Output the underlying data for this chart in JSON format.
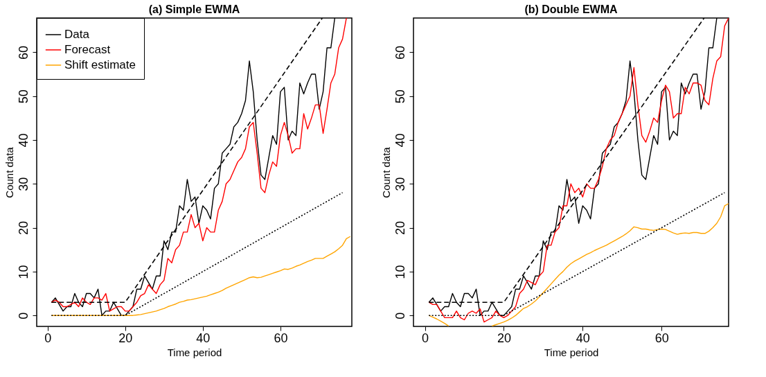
{
  "chart_data": [
    {
      "type": "line",
      "title": "(a) Simple EWMA",
      "xlabel": "Time period",
      "ylabel": "Count data",
      "xlim": [
        -2.8,
        78.4
      ],
      "ylim": [
        -2.5,
        67.8
      ],
      "xticks": [
        0,
        20,
        40,
        60
      ],
      "yticks": [
        0,
        10,
        20,
        30,
        40,
        50,
        60
      ],
      "grid": false,
      "legend": "top left",
      "line_style": "solid",
      "x": [
        1,
        2,
        3,
        4,
        5,
        6,
        7,
        8,
        9,
        10,
        11,
        12,
        13,
        14,
        15,
        16,
        17,
        18,
        19,
        20,
        21,
        22,
        23,
        24,
        25,
        26,
        27,
        28,
        29,
        30,
        31,
        32,
        33,
        34,
        35,
        36,
        37,
        38,
        39,
        40,
        41,
        42,
        43,
        44,
        45,
        46,
        47,
        48,
        49,
        50,
        51,
        52,
        53,
        54,
        55,
        56,
        57,
        58,
        59,
        60,
        61,
        62,
        63,
        64,
        65,
        66,
        67,
        68,
        69,
        70,
        71,
        72,
        73,
        74,
        75,
        76,
        77,
        78
      ],
      "series": [
        {
          "name": "Data",
          "color": "#000000",
          "values": [
            3,
            4,
            2.5,
            1,
            2,
            2,
            5,
            3,
            2,
            5,
            5,
            4,
            6,
            0,
            1,
            1,
            3,
            1.5,
            0,
            0,
            1,
            2,
            6,
            6,
            9,
            7.5,
            6,
            9,
            9,
            17,
            15,
            19,
            19,
            25,
            24,
            31,
            26,
            27,
            21,
            25,
            24,
            22,
            29,
            30,
            37,
            38,
            39,
            43,
            44,
            46,
            49,
            58,
            51,
            40,
            32,
            31,
            36,
            41,
            39,
            51,
            52,
            40,
            42,
            41,
            53,
            50.5,
            53,
            55,
            55,
            47,
            51,
            61,
            61,
            67.8,
            null,
            null,
            null,
            null
          ]
        },
        {
          "name": "Forecast",
          "color": "#ff0000",
          "values": [
            3,
            3.5,
            3,
            2,
            2,
            2.5,
            3,
            2,
            4,
            3,
            2.5,
            4,
            4,
            3.5,
            5,
            1,
            1.5,
            2,
            2,
            1,
            1,
            2,
            3,
            4.5,
            5,
            7,
            6,
            5,
            7,
            8,
            13,
            12,
            15,
            16,
            19,
            19,
            23,
            20,
            21,
            17,
            20,
            19,
            19,
            24,
            26,
            30,
            31,
            33,
            35,
            36,
            38,
            43,
            44,
            37,
            29,
            28,
            32,
            35,
            34,
            41,
            44,
            41,
            37,
            38,
            38,
            46,
            42.5,
            45,
            48,
            48,
            41.5,
            47,
            53,
            55,
            61,
            63,
            67.8,
            null
          ]
        },
        {
          "name": "Shift estimate",
          "color": "#ffa500",
          "values": [
            0,
            0,
            0,
            0,
            0,
            0,
            0,
            0,
            0,
            0,
            0,
            0,
            0,
            0,
            0,
            0,
            0,
            0,
            0,
            0,
            0,
            0,
            0.1,
            0.2,
            0.4,
            0.6,
            0.8,
            1,
            1.3,
            1.6,
            2,
            2.3,
            2.6,
            3,
            3.2,
            3.5,
            3.6,
            3.8,
            4,
            4.2,
            4.4,
            4.7,
            5,
            5.3,
            5.7,
            6.2,
            6.6,
            7,
            7.4,
            7.8,
            8.2,
            8.6,
            8.8,
            8.6,
            8.7,
            9,
            9.3,
            9.6,
            9.9,
            10.2,
            10.6,
            10.5,
            10.8,
            11.2,
            11.5,
            11.9,
            12.3,
            12.6,
            13,
            13,
            13,
            13.5,
            14,
            14.5,
            15.2,
            16,
            17.5,
            18
          ]
        },
        {
          "color": "#000000",
          "line_style": "dashed",
          "x": [
            1,
            20,
            70.8
          ],
          "values": [
            3,
            3,
            67.8
          ]
        },
        {
          "color": "#000000",
          "line_style": "dotted",
          "x": [
            1,
            20,
            76
          ],
          "values": [
            0,
            0,
            28
          ]
        }
      ]
    },
    {
      "type": "line",
      "title": "(b) Double EWMA",
      "xlabel": "Time period",
      "ylabel": "Count data",
      "xlim": [
        -2.9,
        77
      ],
      "ylim": [
        -2.5,
        67.8
      ],
      "xticks": [
        0,
        20,
        40,
        60
      ],
      "yticks": [
        0,
        10,
        20,
        30,
        40,
        50,
        60
      ],
      "grid": false,
      "legend": "top left",
      "line_style": "solid",
      "x": [
        1,
        2,
        3,
        4,
        5,
        6,
        7,
        8,
        9,
        10,
        11,
        12,
        13,
        14,
        15,
        16,
        17,
        18,
        19,
        20,
        21,
        22,
        23,
        24,
        25,
        26,
        27,
        28,
        29,
        30,
        31,
        32,
        33,
        34,
        35,
        36,
        37,
        38,
        39,
        40,
        41,
        42,
        43,
        44,
        45,
        46,
        47,
        48,
        49,
        50,
        51,
        52,
        53,
        54,
        55,
        56,
        57,
        58,
        59,
        60,
        61,
        62,
        63,
        64,
        65,
        66,
        67,
        68,
        69,
        70,
        71,
        72,
        73,
        74,
        75,
        76,
        77
      ],
      "series": [
        {
          "name": "Data",
          "color": "#000000",
          "values": [
            3,
            4,
            2.5,
            1,
            2,
            2,
            5,
            3,
            2,
            5,
            5,
            4,
            6,
            0,
            1,
            1,
            3,
            1.5,
            0,
            0,
            1,
            2,
            6,
            6,
            9,
            7.5,
            6,
            9,
            9,
            17,
            15,
            19,
            19,
            25,
            24,
            31,
            26,
            27,
            21,
            25,
            24,
            22,
            29,
            30,
            37,
            38,
            39,
            43,
            44,
            46,
            49,
            58,
            51,
            40,
            32,
            31,
            36,
            41,
            39,
            51,
            52,
            40,
            42,
            41,
            53,
            50.5,
            53,
            55,
            55,
            47,
            51,
            61,
            61,
            67.8,
            null,
            null,
            null
          ]
        },
        {
          "name": "Forecast",
          "color": "#ff0000",
          "values": [
            3,
            2.5,
            2.5,
            1,
            -0.5,
            -0.5,
            -0.5,
            1,
            -0.5,
            -1,
            0.5,
            1,
            0.5,
            1.5,
            -1.5,
            -1,
            -0.5,
            1,
            0,
            -0.5,
            0,
            1,
            2,
            5,
            6,
            8,
            7.5,
            7,
            9,
            10,
            16,
            16,
            19,
            20,
            25,
            25,
            30,
            28,
            29,
            27,
            30,
            29,
            29,
            31,
            34,
            38,
            40,
            41,
            44,
            46,
            48,
            50,
            56.5,
            48,
            41,
            39.5,
            42,
            45,
            44,
            49,
            52.5,
            51,
            45,
            46,
            46,
            52,
            50.5,
            53,
            53,
            52.5,
            49,
            48,
            54,
            58,
            59,
            66,
            67.8
          ]
        },
        {
          "name": "Shift estimate",
          "color": "#ffa500",
          "values": [
            0,
            -0.4,
            -0.8,
            -1.3,
            -1.8,
            -2.4,
            null,
            null,
            null,
            null,
            null,
            null,
            null,
            null,
            null,
            null,
            -2.4,
            -2.1,
            -1.8,
            -1.5,
            -1.1,
            -0.6,
            0,
            0.8,
            1.6,
            2,
            2.6,
            3.3,
            4.2,
            5.2,
            6.2,
            7.2,
            8.2,
            9.2,
            10,
            11,
            11.8,
            12.4,
            12.9,
            13.4,
            13.9,
            14.3,
            14.8,
            15.2,
            15.6,
            16,
            16.5,
            17,
            17.5,
            18,
            18.6,
            19.3,
            20.2,
            20,
            19.7,
            19.7,
            19.5,
            19.4,
            19.6,
            19.7,
            19.6,
            19.2,
            18.8,
            18.5,
            18.7,
            18.8,
            18.7,
            18.9,
            18.9,
            18.7,
            18.7,
            19.2,
            20,
            21,
            22.5,
            25,
            25.5
          ]
        },
        {
          "color": "#000000",
          "line_style": "dashed",
          "x": [
            1,
            20,
            70.8
          ],
          "values": [
            3,
            3,
            67.8
          ]
        },
        {
          "color": "#000000",
          "line_style": "dotted",
          "x": [
            1,
            20,
            76
          ],
          "values": [
            0,
            0,
            28
          ]
        }
      ]
    }
  ]
}
